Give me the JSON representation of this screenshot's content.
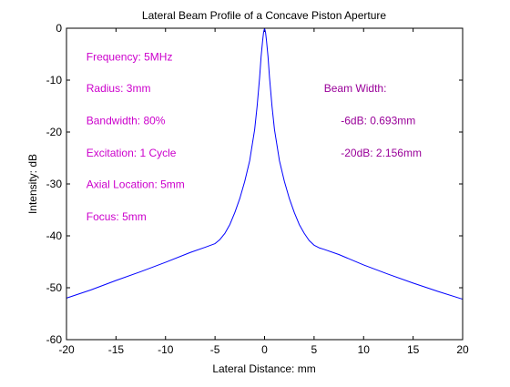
{
  "chart_data": {
    "type": "line",
    "title": "Lateral Beam Profile of a Concave Piston Aperture",
    "xlabel": "Lateral Distance: mm",
    "ylabel": "Intensity: dB",
    "xlim": [
      -20,
      20
    ],
    "ylim": [
      -60,
      0
    ],
    "xticks": [
      -20,
      -15,
      -10,
      -5,
      0,
      5,
      10,
      15,
      20
    ],
    "yticks": [
      0,
      -10,
      -20,
      -30,
      -40,
      -50,
      -60
    ],
    "xtick_labels": [
      "-20",
      "-15",
      "-10",
      "-5",
      "0",
      "5",
      "10",
      "15",
      "20"
    ],
    "ytick_labels": [
      "0",
      "-10",
      "-20",
      "-30",
      "-40",
      "-50",
      "-60"
    ],
    "grid": false,
    "series": [
      {
        "color": "#0000ff",
        "x": [
          -20,
          -17.5,
          -15,
          -12.5,
          -10,
          -7.5,
          -6,
          -5,
          -4.5,
          -4,
          -3.5,
          -3,
          -2.5,
          -2,
          -1.5,
          -1,
          -0.75,
          -0.5,
          -0.35,
          -0.2,
          -0.1,
          0,
          0.1,
          0.2,
          0.35,
          0.5,
          0.75,
          1,
          1.5,
          2,
          2.5,
          3,
          3.5,
          4,
          4.5,
          5,
          5.5,
          6,
          7.5,
          10,
          12.5,
          15,
          17.5,
          20
        ],
        "y": [
          -52,
          -50.4,
          -48.6,
          -46.9,
          -45.1,
          -43.2,
          -42.2,
          -41.5,
          -40.7,
          -39.5,
          -37.8,
          -35.5,
          -32.8,
          -29.5,
          -25.5,
          -19.5,
          -15,
          -9.5,
          -5.5,
          -2.5,
          -0.8,
          0,
          -0.8,
          -2.5,
          -5.5,
          -9.5,
          -15,
          -19.5,
          -25.5,
          -29.5,
          -32.8,
          -35.5,
          -37.8,
          -39.5,
          -40.9,
          -41.8,
          -42.3,
          -42.6,
          -43.6,
          -45.6,
          -47.4,
          -49.1,
          -50.7,
          -52.2
        ]
      }
    ],
    "annotations": [
      {
        "text": "Frequency: 5MHz",
        "x": -18,
        "y": -6.2,
        "color": "#cc00cc"
      },
      {
        "text": "Radius: 3mm",
        "x": -18,
        "y": -12.3,
        "color": "#cc00cc"
      },
      {
        "text": "Bandwidth: 80%",
        "x": -18,
        "y": -18.5,
        "color": "#cc00cc"
      },
      {
        "text": "Excitation: 1 Cycle",
        "x": -18,
        "y": -24.7,
        "color": "#cc00cc"
      },
      {
        "text": "Axial Location: 5mm",
        "x": -18,
        "y": -30.8,
        "color": "#cc00cc"
      },
      {
        "text": "Focus: 5mm",
        "x": -18,
        "y": -37.0,
        "color": "#cc00cc"
      },
      {
        "text": "Beam Width:",
        "x": 6,
        "y": -12.3,
        "color": "#990099"
      },
      {
        "text": "-6dB: 0.693mm",
        "x": 7.7,
        "y": -18.5,
        "color": "#990099"
      },
      {
        "text": "-20dB: 2.156mm",
        "x": 7.7,
        "y": -24.7,
        "color": "#990099"
      }
    ]
  }
}
